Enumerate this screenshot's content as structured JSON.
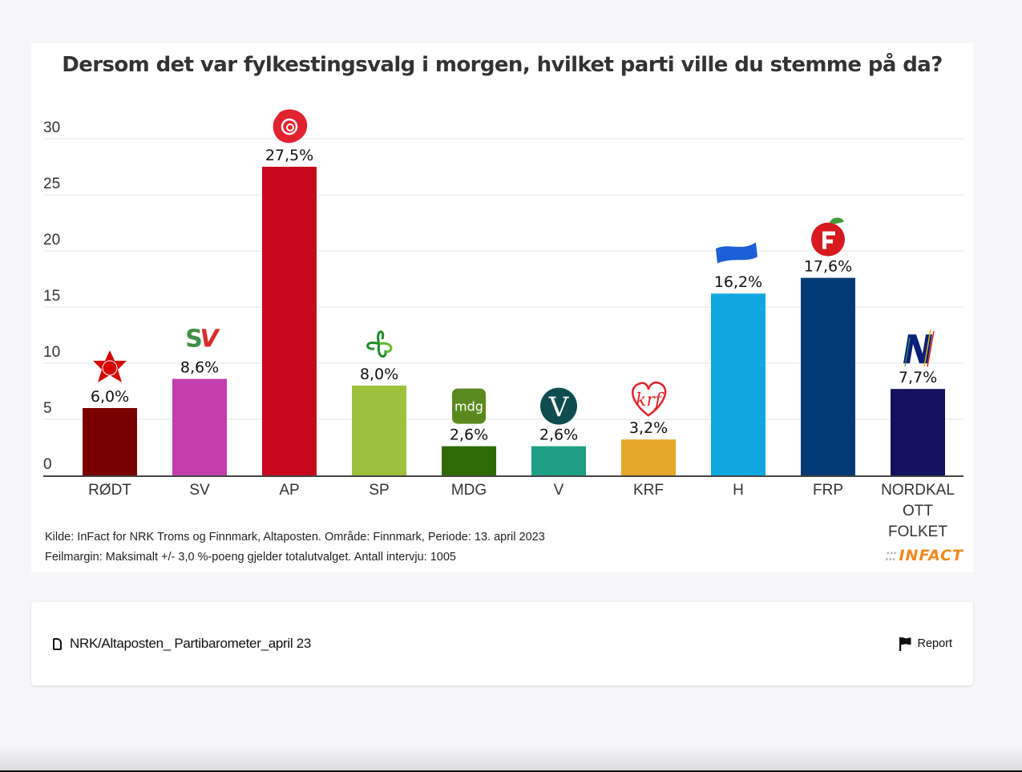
{
  "chart_data": {
    "type": "bar",
    "title": "Dersom det var fylkestingsvalg i morgen, hvilket parti ville du stemme på da?",
    "xlabel": "",
    "ylabel": "",
    "ylim": [
      0,
      30
    ],
    "yticks": [
      0,
      5,
      10,
      15,
      20,
      25,
      30
    ],
    "grid": true,
    "categories": [
      "RØDT",
      "SV",
      "AP",
      "SP",
      "MDG",
      "V",
      "KRF",
      "H",
      "FRP",
      "NORDKALOTT FOLKET"
    ],
    "category_label_lines": [
      [
        "RØDT"
      ],
      [
        "SV"
      ],
      [
        "AP"
      ],
      [
        "SP"
      ],
      [
        "MDG"
      ],
      [
        "V"
      ],
      [
        "KRF"
      ],
      [
        "H"
      ],
      [
        "FRP"
      ],
      [
        "NORDKAL",
        "OTT",
        "FOLKET"
      ]
    ],
    "values": [
      6.0,
      8.6,
      27.5,
      8.0,
      2.6,
      2.6,
      3.2,
      16.2,
      17.6,
      7.7
    ],
    "data_labels": [
      "6,0%",
      "8,6%",
      "27,5%",
      "8,0%",
      "2,6%",
      "2,6%",
      "3,2%",
      "16,2%",
      "17,6%",
      "7,7%"
    ],
    "colors": [
      "#7a0000",
      "#c43fae",
      "#c8081f",
      "#9dc13c",
      "#2f6b04",
      "#1e9e82",
      "#e6a82a",
      "#0fa7df",
      "#003b73",
      "#121260"
    ],
    "party_logos": [
      "star-icon",
      "sv-logo-icon",
      "rose-icon",
      "clover-icon",
      "mdg-logo-icon",
      "v-logo-icon",
      "krf-heart-icon",
      "h-flag-icon",
      "frp-apple-icon",
      "n-logo-icon"
    ],
    "legend": "none"
  },
  "source": {
    "line1": "Kilde: InFact for NRK Troms og Finnmark, Altaposten. Område: Finnmark, Periode: 13. april 2023",
    "line2": "Feilmargin: Maksimalt +/- 3,0 %-poeng gjelder totalutvalget. Antall intervju: 1005"
  },
  "branding": {
    "infact_logo": "INFACT",
    "infact_color": "#f0891e"
  },
  "footer": {
    "file_name": "NRK/Altaposten_ Partibarometer_april 23",
    "report_label": "Report"
  }
}
